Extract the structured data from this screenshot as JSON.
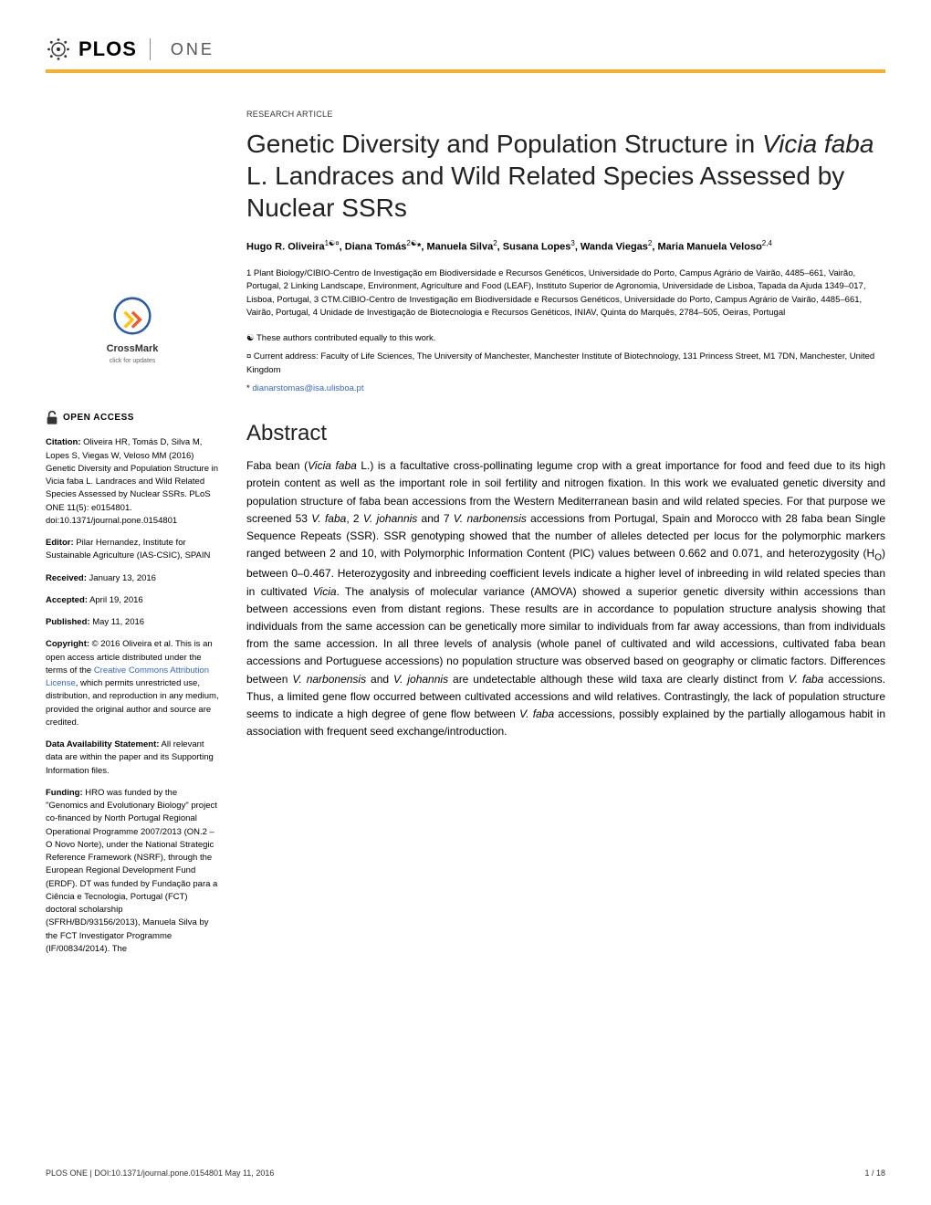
{
  "journal": {
    "name": "PLOS",
    "subtitle": "ONE"
  },
  "colors": {
    "accent_bar": "#f8af2d",
    "link": "#3366cc",
    "text": "#222222",
    "crossmark_blue": "#2a5caa",
    "crossmark_orange": "#f15a29",
    "crossmark_yellow": "#ffc20e"
  },
  "crossmark": {
    "label": "CrossMark",
    "sublabel": "click for updates"
  },
  "open_access_label": "OPEN ACCESS",
  "sidebar": {
    "citation_label": "Citation:",
    "citation": "Oliveira HR, Tomás D, Silva M, Lopes S, Viegas W, Veloso MM (2016) Genetic Diversity and Population Structure in Vicia faba L. Landraces and Wild Related Species Assessed by Nuclear SSRs. PLoS ONE 11(5): e0154801. doi:10.1371/journal.pone.0154801",
    "editor_label": "Editor:",
    "editor": "Pilar Hernandez, Institute for Sustainable Agriculture (IAS-CSIC), SPAIN",
    "received_label": "Received:",
    "received": "January 13, 2016",
    "accepted_label": "Accepted:",
    "accepted": "April 19, 2016",
    "published_label": "Published:",
    "published": "May 11, 2016",
    "copyright_label": "Copyright:",
    "copyright_pre": "© 2016 Oliveira et al. This is an open access article distributed under the terms of the ",
    "copyright_link": "Creative Commons Attribution License",
    "copyright_post": ", which permits unrestricted use, distribution, and reproduction in any medium, provided the original author and source are credited.",
    "data_label": "Data Availability Statement:",
    "data": "All relevant data are within the paper and its Supporting Information files.",
    "funding_label": "Funding:",
    "funding": "HRO was funded by the \"Genomics and Evolutionary Biology\" project co-financed by North Portugal Regional Operational Programme 2007/2013 (ON.2 – O Novo Norte), under the National Strategic Reference Framework (NSRF), through the European Regional Development Fund (ERDF). DT was funded by Fundação para a Ciência e Tecnologia, Portugal (FCT) doctoral scholarship (SFRH/BD/93156/2013), Manuela Silva by the FCT Investigator Programme (IF/00834/2014). The"
  },
  "article": {
    "type": "RESEARCH ARTICLE",
    "title_pre": "Genetic Diversity and Population Structure in ",
    "title_italic": "Vicia faba",
    "title_post": " L. Landraces and Wild Related Species Assessed by Nuclear SSRs",
    "authors_html": "Hugo R. Oliveira<sup>1☯¤</sup>, Diana Tomás<sup>2☯</sup>*, Manuela Silva<sup>2</sup>, Susana Lopes<sup>3</sup>, Wanda Viegas<sup>2</sup>, Maria Manuela Veloso<sup>2,4</sup>",
    "affiliations": "1 Plant Biology/CIBIO-Centro de Investigação em Biodiversidade e Recursos Genéticos, Universidade do Porto, Campus Agrário de Vairão, 4485–661, Vairão, Portugal, 2 Linking Landscape, Environment, Agriculture and Food (LEAF), Instituto Superior de Agronomia, Universidade de Lisboa, Tapada da Ajuda 1349–017, Lisboa, Portugal, 3 CTM.CIBIO-Centro de Investigação em Biodiversidade e Recursos Genéticos, Universidade do Porto, Campus Agrário de Vairão, 4485–661, Vairão, Portugal, 4 Unidade de Investigação de Biotecnologia e Recursos Genéticos, INIAV, Quinta do Marquês, 2784–505, Oeiras, Portugal",
    "note_equal": "☯ These authors contributed equally to this work.",
    "note_address": "¤ Current address: Faculty of Life Sciences, The University of Manchester, Manchester Institute of Biotechnology, 131 Princess Street, M1 7DN, Manchester, United Kingdom",
    "email_prefix": "* ",
    "email": "dianarstomas@isa.ulisboa.pt",
    "abstract_heading": "Abstract",
    "abstract": "Faba bean (Vicia faba L.) is a facultative cross-pollinating legume crop with a great importance for food and feed due to its high protein content as well as the important role in soil fertility and nitrogen fixation. In this work we evaluated genetic diversity and population structure of faba bean accessions from the Western Mediterranean basin and wild related species. For that purpose we screened 53 V. faba, 2 V. johannis and 7 V. narbonensis accessions from Portugal, Spain and Morocco with 28 faba bean Single Sequence Repeats (SSR). SSR genotyping showed that the number of alleles detected per locus for the polymorphic markers ranged between 2 and 10, with Polymorphic Information Content (PIC) values between 0.662 and 0.071, and heterozygosity (HO) between 0–0.467. Heterozygosity and inbreeding coefficient levels indicate a higher level of inbreeding in wild related species than in cultivated Vicia. The analysis of molecular variance (AMOVA) showed a superior genetic diversity within accessions than between accessions even from distant regions. These results are in accordance to population structure analysis showing that individuals from the same accession can be genetically more similar to individuals from far away accessions, than from individuals from the same accession. In all three levels of analysis (whole panel of cultivated and wild accessions, cultivated faba bean accessions and Portuguese accessions) no population structure was observed based on geography or climatic factors. Differences between V. narbonensis and V. johannis are undetectable although these wild taxa are clearly distinct from V. faba accessions. Thus, a limited gene flow occurred between cultivated accessions and wild relatives. Contrastingly, the lack of population structure seems to indicate a high degree of gene flow between V. faba accessions, possibly explained by the partially allogamous habit in association with frequent seed exchange/introduction."
  },
  "footer": {
    "left": "PLOS ONE | DOI:10.1371/journal.pone.0154801   May 11, 2016",
    "right": "1 / 18"
  }
}
